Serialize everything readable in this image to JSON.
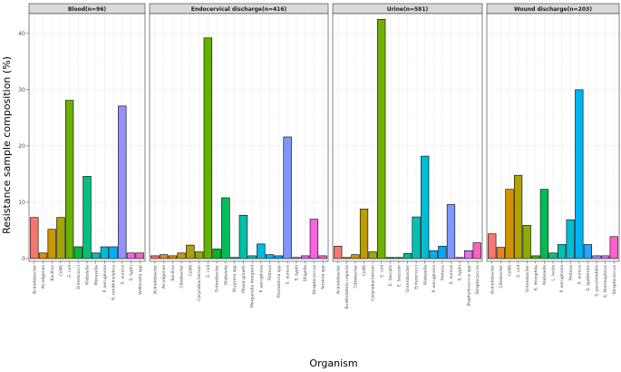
{
  "chart_data": {
    "type": "bar",
    "xlabel": "Organism",
    "ylabel": "Resistance sample composition (%)",
    "ylim": [
      0,
      44
    ],
    "yticks": [
      0,
      10,
      20,
      30,
      40
    ],
    "grid": true,
    "legend": "none",
    "panels": [
      {
        "title": "Blood(n=96)",
        "categories": [
          "Acinetobacter",
          "Alcaligenes",
          "Bacillus",
          "CoNS",
          "E. coli",
          "Enterococci",
          "Klebsiella",
          "Moraxella",
          "P. aeruginosa",
          "R. ornithinolytica",
          "S. aureus",
          "S. typhi",
          "Veillonella spp"
        ],
        "values": [
          7.3,
          1.0,
          5.2,
          7.3,
          28.1,
          2.1,
          14.6,
          1.0,
          2.1,
          2.1,
          27.1,
          1.0,
          1.0
        ],
        "colors": [
          "#F8766D",
          "#E58700",
          "#C99800",
          "#A3A500",
          "#6BB100",
          "#00BA38",
          "#00BF7D",
          "#00C0AF",
          "#00BCD8",
          "#00B0F6",
          "#9590FF",
          "#E76BF3",
          "#FF62BC"
        ]
      },
      {
        "title": "Endocervical discharge(n=416)",
        "categories": [
          "Acinetobacter",
          "Alcaligenes",
          "Bacillus",
          "Citrobacter",
          "CoNS",
          "Corynebacterium",
          "E. coli",
          "Enterobacter",
          "Klebsiella",
          "Kluyvera spp",
          "Mixed growth",
          "Morganella morganii",
          "P. aeruginosa",
          "Proteus",
          "Providencia spp",
          "S. aureus",
          "S. typhi",
          "Shigella",
          "Streptococcus",
          "Yersinia spp"
        ],
        "values": [
          0.5,
          0.7,
          0.5,
          1.0,
          2.4,
          1.2,
          39.2,
          1.7,
          10.8,
          0.2,
          7.7,
          0.5,
          2.6,
          0.7,
          0.5,
          21.6,
          0.2,
          0.5,
          7.0,
          0.5
        ],
        "colors": [
          "#F8766D",
          "#EC8239",
          "#DB8E00",
          "#C79800",
          "#AEA200",
          "#8FAA00",
          "#64B200",
          "#00B81B",
          "#00BD5C",
          "#00C085",
          "#00C1A7",
          "#00BFC4",
          "#00BADE",
          "#00B2F3",
          "#00A6FF",
          "#7F96FF",
          "#BC81FF",
          "#E26EF7",
          "#F863DF",
          "#FF62BF"
        ]
      },
      {
        "title": "Urine(n=581)",
        "categories": [
          "Acinetobacter",
          "Burkholderia cepacia",
          "Citrobacter",
          "CoNS",
          "Corynebacterium",
          "E. coli",
          "E. faecalis",
          "E. faecium",
          "Enterobacter",
          "Enterococci",
          "Klebsiella",
          "P. aeruginosa",
          "Proteus",
          "S. aureus",
          "S. typhi",
          "Staphylococcus spp",
          "Streptococcus"
        ],
        "values": [
          2.2,
          0.2,
          0.7,
          8.8,
          1.2,
          42.5,
          0.2,
          0.2,
          0.9,
          7.4,
          18.2,
          1.4,
          2.2,
          9.6,
          0.2,
          1.4,
          2.8
        ],
        "colors": [
          "#F8766D",
          "#E9842C",
          "#D69100",
          "#BC9D00",
          "#9CA700",
          "#6FB000",
          "#00B813",
          "#00BD61",
          "#00C08E",
          "#00C0B4",
          "#00BDD4",
          "#00B5EE",
          "#00A7FF",
          "#7F96FF",
          "#BC81FF",
          "#E26EF7",
          "#FF61C3"
        ]
      },
      {
        "title": "Wound discharge(n=203)",
        "categories": [
          "Acinetobacter",
          "Citrobacter",
          "CoNS",
          "E. coli",
          "Enterobacter",
          "K. rhizophila",
          "Klebsiella",
          "L. lactis",
          "P. aeruginosa",
          "Proteus",
          "S. aureus",
          "S. epidermis",
          "S. paucimobilis",
          "S. thermophilus",
          "Streptococcus"
        ],
        "values": [
          4.4,
          2.0,
          12.3,
          14.8,
          5.9,
          0.5,
          12.3,
          1.0,
          2.5,
          6.9,
          30.0,
          2.5,
          0.5,
          0.5,
          3.9
        ],
        "colors": [
          "#F8766D",
          "#E7851E",
          "#D09400",
          "#B2A100",
          "#89AC00",
          "#45B500",
          "#00BC51",
          "#00C087",
          "#00C0B2",
          "#00BCD6",
          "#00B3F2",
          "#29A3FF",
          "#9C8DFF",
          "#D277FF",
          "#FF61C9"
        ]
      }
    ]
  }
}
